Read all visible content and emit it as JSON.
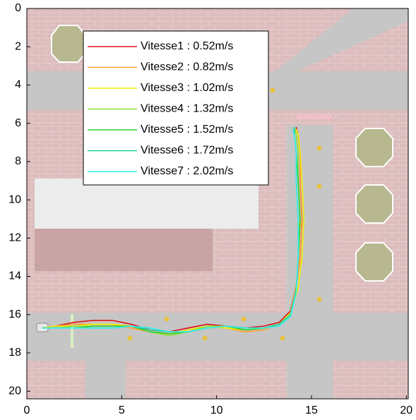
{
  "chart_data": {
    "type": "line",
    "xlim": [
      0,
      20.1
    ],
    "ylim": [
      0,
      20.4
    ],
    "y_inverted": true,
    "xticks": [
      0,
      5,
      10,
      15,
      20
    ],
    "yticks": [
      0,
      2,
      4,
      6,
      8,
      10,
      12,
      14,
      16,
      18,
      20
    ],
    "legend": "upper left",
    "series": [
      {
        "name": "Vitesse1 : 0.52m/s",
        "color": "#e0101a",
        "x": [
          0.8,
          1.5,
          2.5,
          3.5,
          4.5,
          5.5,
          6.5,
          7.5,
          8.5,
          9.5,
          10.5,
          11.5,
          12.5,
          13.3,
          13.9,
          14.2,
          14.4,
          14.5,
          14.4,
          14.4,
          14.3,
          14.2
        ],
        "values": [
          16.7,
          16.6,
          16.4,
          16.3,
          16.3,
          16.5,
          16.8,
          16.9,
          16.7,
          16.5,
          16.6,
          16.7,
          16.6,
          16.4,
          15.8,
          14.5,
          13.0,
          11.0,
          9.0,
          7.5,
          6.6,
          6.2
        ]
      },
      {
        "name": "Vitesse2 : 0.82m/s",
        "color": "#ff9a30",
        "x": [
          0.8,
          1.5,
          2.5,
          3.5,
          4.5,
          5.5,
          6.5,
          7.5,
          8.5,
          9.5,
          10.5,
          11.5,
          12.5,
          13.3,
          13.9,
          14.2,
          14.4,
          14.5,
          14.4,
          14.4,
          14.3,
          14.2
        ],
        "values": [
          16.7,
          16.6,
          16.5,
          16.5,
          16.5,
          16.7,
          16.9,
          17.0,
          16.8,
          16.6,
          16.7,
          16.9,
          16.8,
          16.5,
          15.9,
          14.5,
          13.0,
          11.0,
          9.0,
          7.5,
          6.6,
          6.3
        ]
      },
      {
        "name": "Vitesse3 : 1.02m/s",
        "color": "#f0f000",
        "x": [
          0.8,
          1.5,
          2.5,
          3.5,
          4.5,
          5.5,
          6.5,
          7.5,
          8.5,
          9.5,
          10.5,
          11.5,
          12.5,
          13.3,
          13.9,
          14.3,
          14.5,
          14.6,
          14.5,
          14.4,
          14.3,
          14.2
        ],
        "values": [
          16.7,
          16.6,
          16.6,
          16.5,
          16.5,
          16.6,
          16.9,
          17.0,
          16.8,
          16.6,
          16.7,
          16.8,
          16.7,
          16.5,
          15.9,
          14.6,
          13.0,
          11.0,
          9.0,
          7.5,
          6.6,
          6.3
        ]
      },
      {
        "name": "Vitesse4 : 1.32m/s",
        "color": "#90e030",
        "x": [
          0.8,
          1.5,
          2.5,
          3.5,
          4.5,
          5.5,
          6.5,
          7.5,
          8.5,
          9.5,
          10.5,
          11.5,
          12.5,
          13.3,
          13.9,
          14.2,
          14.3,
          14.4,
          14.3,
          14.3,
          14.2,
          14.1
        ],
        "values": [
          16.7,
          16.7,
          16.6,
          16.6,
          16.6,
          16.6,
          16.9,
          17.1,
          16.9,
          16.6,
          16.6,
          16.8,
          16.7,
          16.5,
          16.0,
          14.6,
          13.0,
          11.0,
          9.0,
          7.5,
          6.6,
          6.2
        ]
      },
      {
        "name": "Vitesse5 : 1.52m/s",
        "color": "#30d030",
        "x": [
          0.8,
          1.5,
          2.5,
          3.5,
          4.5,
          5.5,
          6.5,
          7.5,
          8.5,
          9.5,
          10.5,
          11.5,
          12.5,
          13.3,
          13.9,
          14.2,
          14.3,
          14.4,
          14.3,
          14.2,
          14.1,
          14.1
        ],
        "values": [
          16.7,
          16.7,
          16.7,
          16.6,
          16.6,
          16.6,
          16.9,
          17.0,
          16.9,
          16.7,
          16.6,
          16.8,
          16.7,
          16.5,
          16.0,
          14.7,
          13.0,
          11.0,
          9.0,
          7.5,
          6.6,
          6.2
        ]
      },
      {
        "name": "Vitesse6 : 1.72m/s",
        "color": "#20d0a0",
        "x": [
          0.8,
          1.5,
          2.5,
          3.5,
          4.5,
          5.5,
          6.5,
          7.5,
          8.5,
          9.5,
          10.5,
          11.5,
          12.5,
          13.3,
          13.9,
          14.2,
          14.3,
          14.3,
          14.2,
          14.2,
          14.1,
          14.1
        ],
        "values": [
          16.7,
          16.7,
          16.7,
          16.7,
          16.7,
          16.6,
          16.8,
          16.9,
          16.9,
          16.7,
          16.6,
          16.7,
          16.7,
          16.5,
          16.0,
          14.7,
          13.0,
          11.0,
          9.0,
          7.5,
          6.6,
          6.2
        ]
      },
      {
        "name": "Vitesse7 : 2.02m/s",
        "color": "#30f0f0",
        "x": [
          0.8,
          1.5,
          2.5,
          3.5,
          4.5,
          5.5,
          6.5,
          7.5,
          8.5,
          9.5,
          10.5,
          11.5,
          12.5,
          13.3,
          13.9,
          14.2,
          14.3,
          14.3,
          14.2,
          14.2,
          14.1,
          14.0
        ],
        "values": [
          16.7,
          16.7,
          16.7,
          16.7,
          16.7,
          16.6,
          16.7,
          16.9,
          16.9,
          16.7,
          16.6,
          16.7,
          16.7,
          16.6,
          16.1,
          14.8,
          13.0,
          11.0,
          9.0,
          7.5,
          6.6,
          6.3
        ]
      }
    ]
  }
}
